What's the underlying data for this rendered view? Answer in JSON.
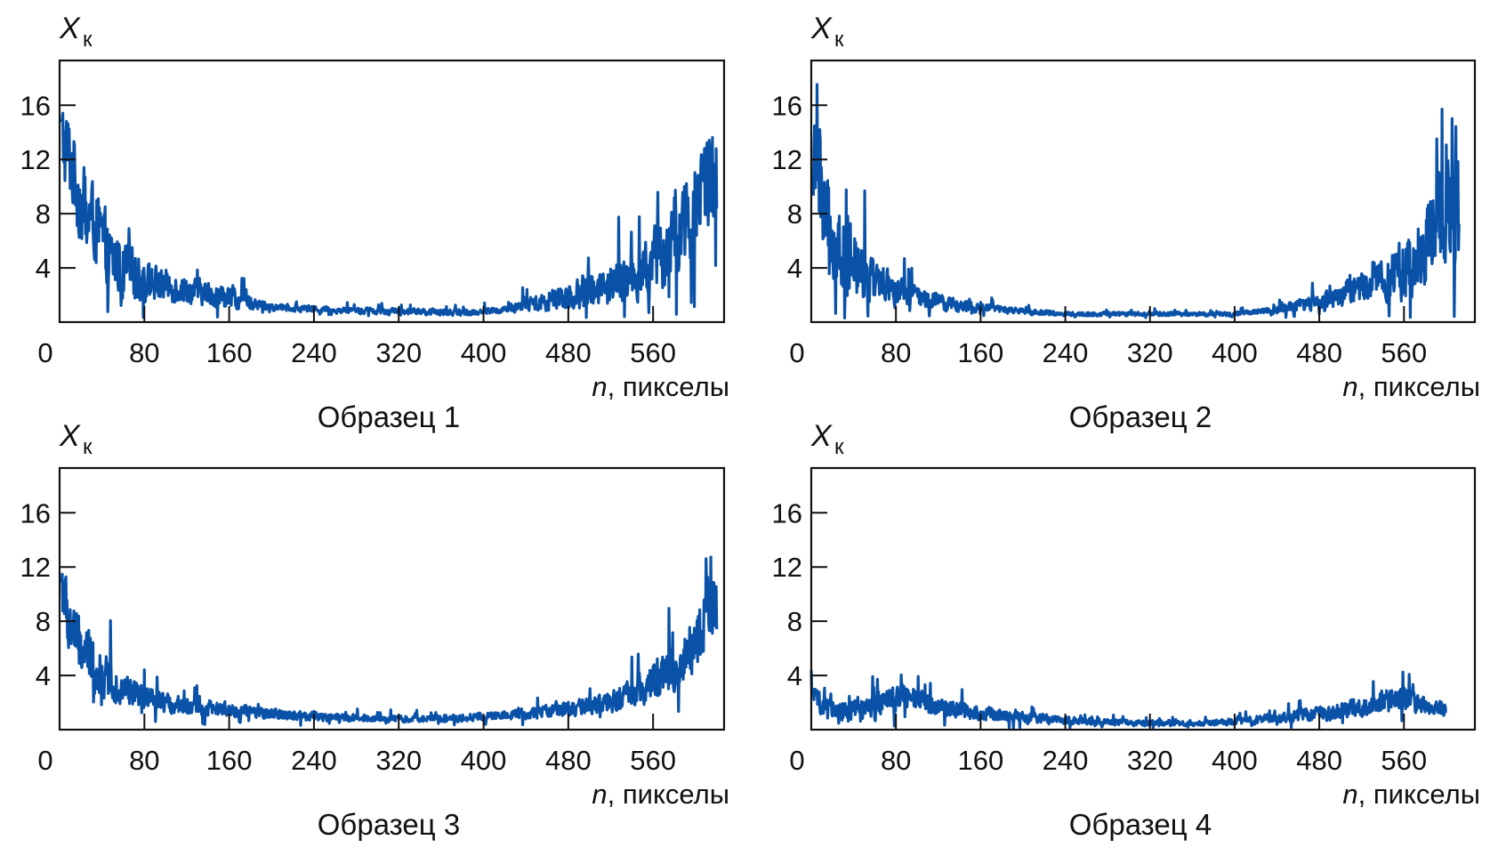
{
  "figure": {
    "line_color": "#0a52a8",
    "axis_color": "#111111"
  },
  "chart_data": [
    {
      "type": "line",
      "title": "Образец 1",
      "ylabel_main": "X",
      "ylabel_sub": "к",
      "xlabel_var": "n",
      "xlabel_unit": ", пикселы",
      "xlim": [
        0,
        627
      ],
      "ylim": [
        0,
        19.3
      ],
      "xticks": [
        0,
        80,
        160,
        240,
        320,
        400,
        480,
        560
      ],
      "yticks": [
        4,
        8,
        12,
        16
      ],
      "grid": false,
      "legend": "none",
      "series": [
        {
          "name": "Образец 1",
          "x_start": 2,
          "x_end": 620,
          "mean_profile": [
            [
              2,
              13.5
            ],
            [
              10,
              12
            ],
            [
              20,
              9
            ],
            [
              35,
              7
            ],
            [
              50,
              4.5
            ],
            [
              80,
              3
            ],
            [
              120,
              2.4
            ],
            [
              160,
              1.8
            ],
            [
              200,
              1.1
            ],
            [
              260,
              0.9
            ],
            [
              320,
              0.8
            ],
            [
              380,
              0.7
            ],
            [
              420,
              0.9
            ],
            [
              460,
              1.6
            ],
            [
              500,
              2.4
            ],
            [
              540,
              3.2
            ],
            [
              570,
              5
            ],
            [
              590,
              7.5
            ],
            [
              605,
              10
            ],
            [
              620,
              11
            ]
          ],
          "noise_profile": [
            [
              2,
              4
            ],
            [
              20,
              4
            ],
            [
              50,
              3
            ],
            [
              100,
              1.5
            ],
            [
              180,
              0.8
            ],
            [
              200,
              0.3
            ],
            [
              420,
              0.3
            ],
            [
              470,
              1.2
            ],
            [
              540,
              2.2
            ],
            [
              580,
              4
            ],
            [
              620,
              5.5
            ]
          ],
          "min_value": 0.3
        }
      ]
    },
    {
      "type": "line",
      "title": "Образец 2",
      "ylabel_main": "X",
      "ylabel_sub": "к",
      "xlabel_var": "n",
      "xlabel_unit": ", пикселы",
      "xlim": [
        0,
        627
      ],
      "ylim": [
        0,
        19.3
      ],
      "xticks": [
        0,
        80,
        160,
        240,
        320,
        400,
        480,
        560
      ],
      "yticks": [
        4,
        8,
        12,
        16
      ],
      "grid": false,
      "legend": "none",
      "series": [
        {
          "name": "Образец 2",
          "x_start": 2,
          "x_end": 612,
          "mean_profile": [
            [
              2,
              12
            ],
            [
              10,
              9
            ],
            [
              20,
              6.5
            ],
            [
              35,
              4.5
            ],
            [
              60,
              3
            ],
            [
              90,
              2
            ],
            [
              130,
              1.3
            ],
            [
              180,
              0.9
            ],
            [
              240,
              0.6
            ],
            [
              330,
              0.6
            ],
            [
              400,
              0.6
            ],
            [
              440,
              0.9
            ],
            [
              480,
              1.5
            ],
            [
              520,
              2.6
            ],
            [
              560,
              3.8
            ],
            [
              585,
              6
            ],
            [
              600,
              8
            ],
            [
              612,
              9
            ]
          ],
          "noise_profile": [
            [
              2,
              4.5
            ],
            [
              30,
              4
            ],
            [
              60,
              2
            ],
            [
              100,
              1
            ],
            [
              160,
              0.4
            ],
            [
              240,
              0.2
            ],
            [
              420,
              0.2
            ],
            [
              480,
              0.8
            ],
            [
              540,
              1.8
            ],
            [
              580,
              4
            ],
            [
              612,
              6
            ]
          ],
          "min_value": 0.3
        }
      ]
    },
    {
      "type": "line",
      "title": "Образец 3",
      "ylabel_main": "X",
      "ylabel_sub": "к",
      "xlabel_var": "n",
      "xlabel_unit": ", пикселы",
      "xlim": [
        0,
        627
      ],
      "ylim": [
        0,
        19.3
      ],
      "xticks": [
        0,
        80,
        160,
        240,
        320,
        400,
        480,
        560
      ],
      "yticks": [
        4,
        8,
        12,
        16
      ],
      "grid": false,
      "legend": "none",
      "series": [
        {
          "name": "Образец 3",
          "x_start": 2,
          "x_end": 620,
          "mean_profile": [
            [
              2,
              11
            ],
            [
              8,
              8
            ],
            [
              20,
              6
            ],
            [
              40,
              4
            ],
            [
              60,
              3
            ],
            [
              90,
              2
            ],
            [
              140,
              1.6
            ],
            [
              200,
              1.2
            ],
            [
              260,
              0.9
            ],
            [
              320,
              0.8
            ],
            [
              380,
              0.9
            ],
            [
              430,
              1.1
            ],
            [
              480,
              1.5
            ],
            [
              520,
              2
            ],
            [
              550,
              3
            ],
            [
              580,
              4.5
            ],
            [
              600,
              6.5
            ],
            [
              612,
              9
            ],
            [
              620,
              9
            ]
          ],
          "noise_profile": [
            [
              2,
              3
            ],
            [
              30,
              2.5
            ],
            [
              60,
              1.5
            ],
            [
              100,
              0.9
            ],
            [
              200,
              0.5
            ],
            [
              300,
              0.3
            ],
            [
              420,
              0.4
            ],
            [
              500,
              0.8
            ],
            [
              550,
              1.5
            ],
            [
              590,
              2.5
            ],
            [
              620,
              3.5
            ]
          ],
          "min_value": 0.3
        }
      ]
    },
    {
      "type": "line",
      "title": "Образец 4",
      "ylabel_main": "X",
      "ylabel_sub": "к",
      "xlabel_var": "n",
      "xlabel_unit": ", пикселы",
      "xlim": [
        0,
        627
      ],
      "ylim": [
        0,
        19.3
      ],
      "xticks": [
        0,
        80,
        160,
        240,
        320,
        400,
        480,
        560
      ],
      "yticks": [
        4,
        8,
        12,
        16
      ],
      "grid": false,
      "legend": "none",
      "series": [
        {
          "name": "Образец 4",
          "x_start": 0,
          "x_end": 600,
          "mean_profile": [
            [
              0,
              2.8
            ],
            [
              10,
              1.6
            ],
            [
              40,
              1.3
            ],
            [
              70,
              2
            ],
            [
              85,
              2.6
            ],
            [
              100,
              2.1
            ],
            [
              140,
              1.4
            ],
            [
              200,
              0.9
            ],
            [
              260,
              0.6
            ],
            [
              320,
              0.45
            ],
            [
              380,
              0.5
            ],
            [
              420,
              0.7
            ],
            [
              470,
              1.1
            ],
            [
              520,
              1.7
            ],
            [
              550,
              2.4
            ],
            [
              565,
              2.2
            ],
            [
              580,
              1.6
            ],
            [
              600,
              1.5
            ]
          ],
          "noise_profile": [
            [
              0,
              0.8
            ],
            [
              80,
              1.2
            ],
            [
              150,
              0.7
            ],
            [
              260,
              0.3
            ],
            [
              380,
              0.25
            ],
            [
              450,
              0.5
            ],
            [
              550,
              1.1
            ],
            [
              600,
              0.7
            ]
          ],
          "min_value": 0.1
        }
      ]
    }
  ]
}
